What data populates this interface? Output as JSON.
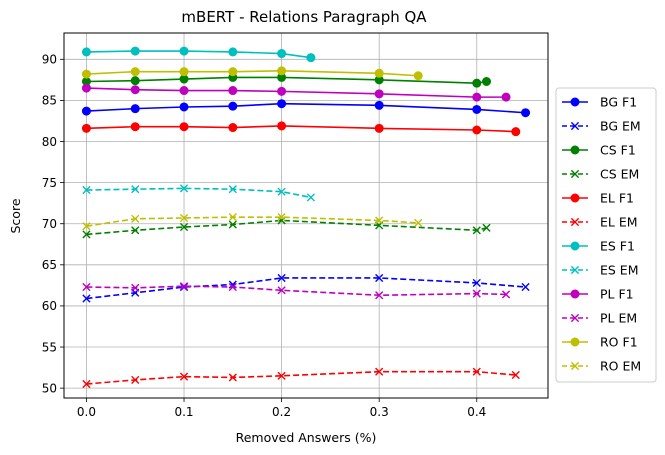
{
  "chart_data": {
    "type": "line",
    "title": "mBERT - Relations Paragraph QA",
    "xlabel": "Removed Answers (%)",
    "ylabel": "Score",
    "xlim": [
      -0.023,
      0.473
    ],
    "ylim": [
      48.8,
      93.2
    ],
    "xticks": [
      0.0,
      0.1,
      0.2,
      0.3,
      0.4
    ],
    "xtick_labels": [
      "0.0",
      "0.1",
      "0.2",
      "0.3",
      "0.4"
    ],
    "yticks": [
      50,
      55,
      60,
      65,
      70,
      75,
      80,
      85,
      90
    ],
    "ytick_labels": [
      "50",
      "55",
      "60",
      "65",
      "70",
      "75",
      "80",
      "85",
      "90"
    ],
    "grid": true,
    "legend_position": "outside-right",
    "series": [
      {
        "name": "BG F1",
        "color": "#0000ff",
        "style": "solid",
        "marker": "circle",
        "x": [
          0.0,
          0.05,
          0.1,
          0.15,
          0.2,
          0.3,
          0.4,
          0.45
        ],
        "y": [
          83.7,
          84.0,
          84.2,
          84.3,
          84.6,
          84.4,
          83.9,
          83.5
        ]
      },
      {
        "name": "BG EM",
        "color": "#0000ff",
        "style": "dashed",
        "marker": "x",
        "x": [
          0.0,
          0.05,
          0.1,
          0.15,
          0.2,
          0.3,
          0.4,
          0.45
        ],
        "y": [
          60.9,
          61.6,
          62.3,
          62.6,
          63.4,
          63.4,
          62.8,
          62.3
        ]
      },
      {
        "name": "CS F1",
        "color": "#008000",
        "style": "solid",
        "marker": "circle",
        "x": [
          0.0,
          0.05,
          0.1,
          0.15,
          0.2,
          0.3,
          0.4,
          0.41
        ],
        "y": [
          87.3,
          87.4,
          87.6,
          87.8,
          87.8,
          87.5,
          87.1,
          87.3
        ]
      },
      {
        "name": "CS EM",
        "color": "#008000",
        "style": "dashed",
        "marker": "x",
        "x": [
          0.0,
          0.05,
          0.1,
          0.15,
          0.2,
          0.3,
          0.4,
          0.41
        ],
        "y": [
          68.7,
          69.2,
          69.6,
          69.9,
          70.4,
          69.8,
          69.2,
          69.5
        ]
      },
      {
        "name": "EL F1",
        "color": "#ff0000",
        "style": "solid",
        "marker": "circle",
        "x": [
          0.0,
          0.05,
          0.1,
          0.15,
          0.2,
          0.3,
          0.4,
          0.44
        ],
        "y": [
          81.6,
          81.8,
          81.8,
          81.7,
          81.9,
          81.6,
          81.4,
          81.2
        ]
      },
      {
        "name": "EL EM",
        "color": "#ff0000",
        "style": "dashed",
        "marker": "x",
        "x": [
          0.0,
          0.05,
          0.1,
          0.15,
          0.2,
          0.3,
          0.4,
          0.44
        ],
        "y": [
          50.5,
          51.0,
          51.4,
          51.3,
          51.5,
          52.0,
          52.0,
          51.6
        ]
      },
      {
        "name": "ES F1",
        "color": "#00bfbf",
        "style": "solid",
        "marker": "circle",
        "x": [
          0.0,
          0.05,
          0.1,
          0.15,
          0.2,
          0.23
        ],
        "y": [
          90.9,
          91.0,
          91.0,
          90.9,
          90.7,
          90.2
        ]
      },
      {
        "name": "ES EM",
        "color": "#00bfbf",
        "style": "dashed",
        "marker": "x",
        "x": [
          0.0,
          0.05,
          0.1,
          0.15,
          0.2,
          0.23
        ],
        "y": [
          74.1,
          74.2,
          74.3,
          74.2,
          73.9,
          73.2
        ]
      },
      {
        "name": "PL F1",
        "color": "#bf00bf",
        "style": "solid",
        "marker": "circle",
        "x": [
          0.0,
          0.05,
          0.1,
          0.15,
          0.2,
          0.3,
          0.4,
          0.43
        ],
        "y": [
          86.5,
          86.3,
          86.2,
          86.2,
          86.1,
          85.8,
          85.4,
          85.4
        ]
      },
      {
        "name": "PL EM",
        "color": "#bf00bf",
        "style": "dashed",
        "marker": "x",
        "x": [
          0.0,
          0.05,
          0.1,
          0.15,
          0.2,
          0.3,
          0.4,
          0.43
        ],
        "y": [
          62.3,
          62.2,
          62.4,
          62.3,
          61.9,
          61.3,
          61.5,
          61.4
        ]
      },
      {
        "name": "RO F1",
        "color": "#bfbf00",
        "style": "solid",
        "marker": "circle",
        "x": [
          0.0,
          0.05,
          0.1,
          0.15,
          0.2,
          0.3,
          0.34
        ],
        "y": [
          88.2,
          88.5,
          88.5,
          88.5,
          88.6,
          88.3,
          88.0
        ]
      },
      {
        "name": "RO EM",
        "color": "#bfbf00",
        "style": "dashed",
        "marker": "x",
        "x": [
          0.0,
          0.05,
          0.1,
          0.15,
          0.2,
          0.3,
          0.34
        ],
        "y": [
          69.7,
          70.6,
          70.7,
          70.8,
          70.8,
          70.4,
          70.1
        ]
      }
    ]
  }
}
